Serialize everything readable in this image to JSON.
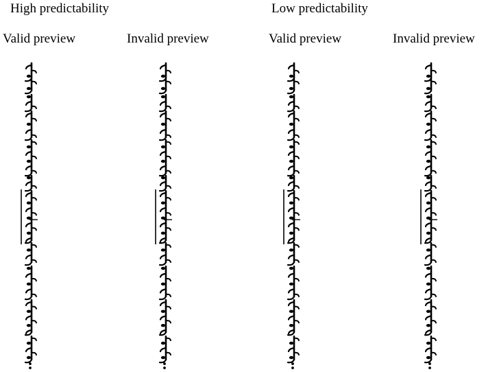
{
  "groups": [
    {
      "title": "High predictability",
      "columns": [
        {
          "label": "Valid preview",
          "highlight_word": 6
        },
        {
          "label": "Invalid preview",
          "highlight_word": 6
        }
      ]
    },
    {
      "title": "Low predictability",
      "columns": [
        {
          "label": "Valid preview",
          "highlight_word": 6
        },
        {
          "label": "Invalid preview",
          "highlight_word": 6
        }
      ]
    }
  ],
  "sentence": {
    "script": "Traditional Mongolian (vertical)",
    "word_count": 11,
    "ends_with": "period-dots"
  }
}
